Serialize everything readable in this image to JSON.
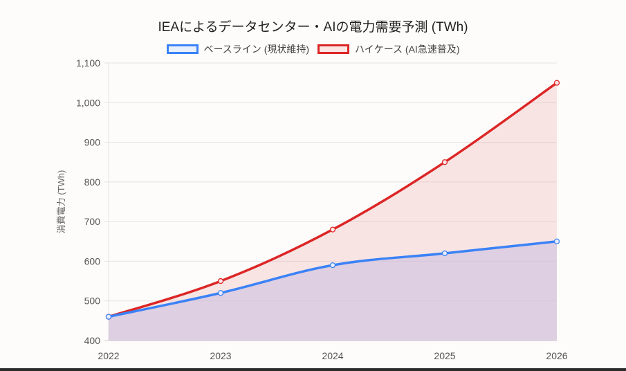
{
  "chart_data": {
    "type": "line",
    "title": "IEAによるデータセンター・AIの電力需要予測 (TWh)",
    "xlabel": "",
    "ylabel": "消費電力 (TWh)",
    "categories": [
      "2022",
      "2023",
      "2024",
      "2025",
      "2026"
    ],
    "ylim": [
      400,
      1100
    ],
    "yticks": [
      "400",
      "500",
      "600",
      "700",
      "800",
      "900",
      "1,000",
      "1,100"
    ],
    "grid": true,
    "legend": "top",
    "filled": true,
    "series": [
      {
        "name": "ベースライン (現状維持)",
        "values": [
          460,
          520,
          590,
          620,
          650
        ],
        "color": "#3b82f6",
        "fill": "#e8effd"
      },
      {
        "name": "ハイケース (AI急速普及)",
        "values": [
          460,
          550,
          680,
          850,
          1050
        ],
        "color": "#dc2626",
        "fill": "#fbe6e6"
      }
    ]
  }
}
